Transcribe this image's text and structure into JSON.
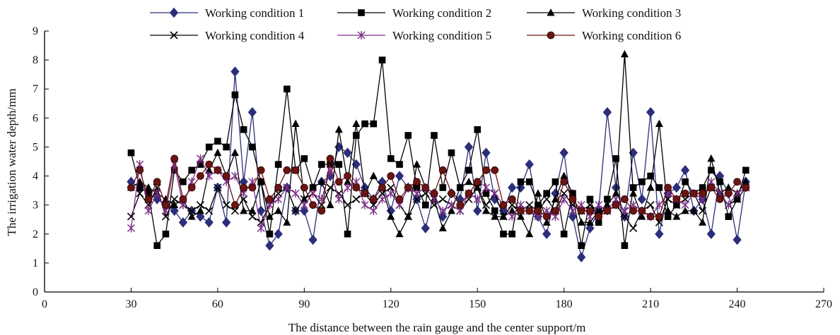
{
  "chart_data": {
    "type": "line",
    "xlabel": "The distance between the rain gauge and the center support/m",
    "ylabel": "The irrigation water depth/mm",
    "xlim": [
      0,
      270
    ],
    "ylim": [
      0,
      9
    ],
    "xticks": [
      0,
      30,
      60,
      90,
      120,
      150,
      180,
      210,
      240,
      270
    ],
    "yticks": [
      0,
      1,
      2,
      3,
      4,
      5,
      6,
      7,
      8,
      9
    ],
    "grid": false,
    "legend_position": "top",
    "x": [
      30,
      33,
      36,
      39,
      42,
      45,
      48,
      51,
      54,
      57,
      60,
      63,
      66,
      69,
      72,
      75,
      78,
      81,
      84,
      87,
      90,
      93,
      96,
      99,
      102,
      105,
      108,
      111,
      114,
      117,
      120,
      123,
      126,
      129,
      132,
      135,
      138,
      141,
      144,
      147,
      150,
      153,
      156,
      159,
      162,
      165,
      168,
      171,
      174,
      177,
      180,
      183,
      186,
      189,
      192,
      195,
      198,
      201,
      204,
      207,
      210,
      213,
      216,
      219,
      222,
      225,
      228,
      231,
      234,
      237,
      240,
      243
    ],
    "series": [
      {
        "name": "Working condition 1",
        "color": "#2b2f7a",
        "marker": "diamond",
        "values": [
          3.8,
          3.6,
          3.4,
          3.2,
          3.0,
          2.8,
          2.4,
          2.8,
          2.6,
          2.4,
          3.6,
          2.4,
          7.6,
          3.8,
          6.2,
          2.8,
          1.6,
          2.0,
          3.6,
          2.8,
          2.8,
          1.8,
          3.8,
          4.0,
          5.0,
          4.8,
          4.4,
          3.6,
          3.2,
          3.8,
          2.8,
          4.0,
          3.6,
          3.2,
          2.2,
          3.4,
          2.6,
          3.4,
          3.2,
          5.0,
          2.8,
          4.8,
          3.2,
          2.8,
          3.6,
          3.6,
          4.4,
          2.6,
          2.0,
          3.4,
          4.8,
          2.6,
          1.2,
          2.2,
          2.8,
          6.2,
          3.6,
          2.6,
          4.8,
          3.2,
          6.2,
          2.0,
          3.4,
          3.6,
          4.2,
          2.8,
          3.2,
          2.0,
          4.0,
          3.4,
          1.8,
          3.8
        ]
      },
      {
        "name": "Working condition 2",
        "color": "#000000",
        "marker": "square",
        "values": [
          4.8,
          3.6,
          3.4,
          1.6,
          2.0,
          4.2,
          3.8,
          4.2,
          4.4,
          5.0,
          5.2,
          5.0,
          6.8,
          5.6,
          5.0,
          3.8,
          2.0,
          4.4,
          7.0,
          4.2,
          4.6,
          3.6,
          4.4,
          4.4,
          4.4,
          2.0,
          5.4,
          5.8,
          5.8,
          8.0,
          4.6,
          4.4,
          5.4,
          3.6,
          3.0,
          5.4,
          3.6,
          4.8,
          3.6,
          4.2,
          5.6,
          3.4,
          2.8,
          2.0,
          2.0,
          3.8,
          3.8,
          3.0,
          3.4,
          3.8,
          2.0,
          3.4,
          1.6,
          3.2,
          2.4,
          3.2,
          4.6,
          1.6,
          3.6,
          3.8,
          4.0,
          3.6,
          2.6,
          3.0,
          3.8,
          3.4,
          3.6,
          4.2,
          3.8,
          2.6,
          3.2,
          4.2
        ]
      },
      {
        "name": "Working condition 3",
        "color": "#000000",
        "marker": "triangle",
        "values": [
          3.6,
          3.8,
          3.6,
          3.4,
          3.2,
          3.0,
          3.2,
          2.6,
          2.8,
          4.2,
          4.8,
          4.0,
          4.8,
          2.8,
          2.8,
          3.8,
          2.6,
          2.8,
          2.4,
          5.8,
          3.2,
          3.6,
          3.8,
          3.0,
          5.6,
          3.8,
          5.8,
          3.4,
          4.0,
          3.6,
          2.6,
          2.0,
          2.6,
          4.4,
          3.6,
          3.2,
          2.2,
          2.8,
          3.6,
          3.8,
          3.6,
          2.8,
          2.6,
          2.6,
          2.8,
          2.6,
          2.0,
          3.4,
          2.4,
          3.2,
          4.0,
          3.4,
          2.4,
          2.4,
          2.8,
          3.0,
          3.4,
          8.2,
          3.4,
          2.6,
          3.6,
          5.8,
          2.8,
          2.6,
          2.8,
          2.8,
          2.4,
          4.6,
          3.4,
          3.6,
          3.4,
          3.8
        ]
      },
      {
        "name": "Working condition 4",
        "color": "#000000",
        "marker": "x",
        "values": [
          2.6,
          3.4,
          3.0,
          3.6,
          2.6,
          3.2,
          3.0,
          2.8,
          3.0,
          2.8,
          3.6,
          3.0,
          2.8,
          3.2,
          2.6,
          2.4,
          3.0,
          3.4,
          3.6,
          2.8,
          3.2,
          3.4,
          3.0,
          3.6,
          3.4,
          3.0,
          3.2,
          3.4,
          3.0,
          3.4,
          3.6,
          3.0,
          2.6,
          3.2,
          3.4,
          3.0,
          3.2,
          3.0,
          2.8,
          3.2,
          3.6,
          3.0,
          3.4,
          2.6,
          3.0,
          2.8,
          3.0,
          2.8,
          3.2,
          2.8,
          3.4,
          3.0,
          2.8,
          3.0,
          2.8,
          2.8,
          3.0,
          2.6,
          2.2,
          2.8,
          3.0,
          2.4,
          3.2,
          3.0,
          3.2,
          3.4,
          2.8,
          3.6,
          3.4,
          3.0,
          3.2,
          3.6
        ]
      },
      {
        "name": "Working condition 5",
        "color": "#7d2e86",
        "marker": "asterisk",
        "values": [
          2.2,
          4.4,
          2.8,
          3.4,
          2.8,
          4.4,
          3.0,
          3.8,
          4.6,
          4.0,
          4.2,
          3.8,
          4.0,
          3.4,
          3.8,
          2.2,
          3.0,
          3.2,
          3.6,
          3.4,
          3.0,
          3.4,
          3.2,
          4.2,
          3.2,
          3.6,
          3.8,
          3.0,
          2.8,
          3.2,
          3.4,
          3.0,
          3.6,
          3.4,
          3.6,
          3.2,
          2.8,
          3.0,
          2.8,
          3.4,
          3.2,
          3.6,
          3.4,
          3.0,
          2.6,
          3.0,
          2.8,
          2.6,
          2.8,
          2.6,
          3.2,
          2.8,
          3.0,
          2.6,
          3.0,
          2.8,
          3.2,
          2.8,
          3.0,
          2.8,
          2.6,
          3.0,
          3.4,
          3.2,
          3.0,
          3.4,
          3.2,
          3.8,
          3.4,
          3.0,
          3.4,
          3.6
        ]
      },
      {
        "name": "Working condition 6",
        "color": "#6b1412",
        "marker": "circle",
        "values": [
          3.6,
          4.2,
          3.2,
          3.8,
          3.0,
          4.6,
          3.2,
          3.6,
          4.0,
          4.4,
          4.2,
          4.0,
          3.0,
          3.6,
          3.6,
          4.2,
          3.2,
          3.6,
          4.2,
          4.2,
          3.6,
          3.0,
          2.8,
          4.6,
          3.8,
          4.0,
          3.6,
          3.4,
          3.2,
          3.6,
          4.0,
          3.2,
          3.6,
          3.8,
          3.6,
          3.4,
          4.2,
          3.4,
          3.0,
          3.4,
          3.8,
          4.2,
          4.2,
          3.0,
          3.2,
          2.8,
          2.8,
          2.8,
          2.6,
          2.8,
          3.8,
          3.2,
          2.8,
          2.8,
          2.6,
          2.8,
          3.0,
          3.2,
          2.8,
          2.8,
          2.6,
          2.6,
          3.6,
          3.2,
          3.4,
          3.4,
          3.4,
          3.6,
          3.2,
          3.4,
          3.8,
          3.6
        ]
      }
    ]
  }
}
